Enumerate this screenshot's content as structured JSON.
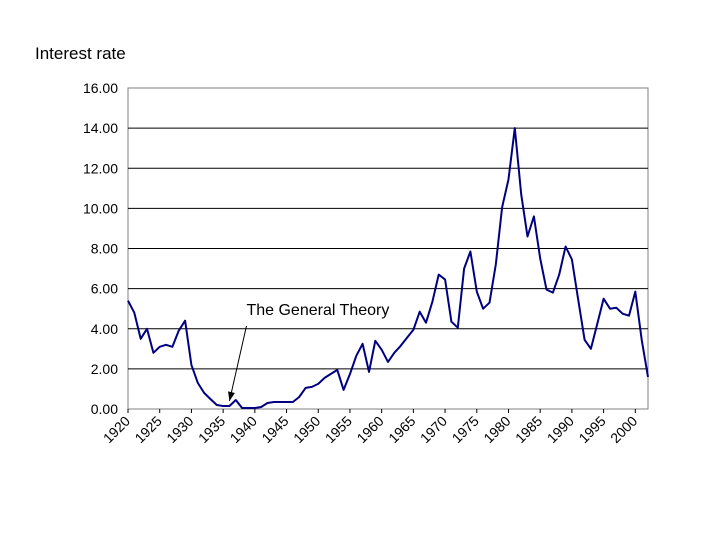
{
  "chart_data": {
    "type": "line",
    "ylabel": "Interest rate",
    "ylim": [
      0,
      16
    ],
    "y_ticks": [
      "0.00",
      "2.00",
      "4.00",
      "6.00",
      "8.00",
      "10.00",
      "12.00",
      "14.00",
      "16.00"
    ],
    "xlim": [
      1920,
      2002
    ],
    "x_ticks": [
      "1920",
      "1925",
      "1930",
      "1935",
      "1940",
      "1945",
      "1950",
      "1955",
      "1960",
      "1965",
      "1970",
      "1975",
      "1980",
      "1985",
      "1990",
      "1995",
      "2000"
    ],
    "grid": true,
    "line_color": "#000080",
    "annotation": {
      "text": "The General Theory",
      "x": 1936,
      "y": 0.4
    },
    "series": [
      {
        "x": [
          1920,
          1921,
          1922,
          1923,
          1924,
          1925,
          1926,
          1927,
          1928,
          1929,
          1930,
          1931,
          1932,
          1933,
          1934,
          1935,
          1936,
          1937,
          1938,
          1939,
          1940,
          1941,
          1942,
          1943,
          1944,
          1945,
          1946,
          1947,
          1948,
          1949,
          1950,
          1951,
          1952,
          1953,
          1954,
          1955,
          1956,
          1957,
          1958,
          1959,
          1960,
          1961,
          1962,
          1963,
          1964,
          1965,
          1966,
          1967,
          1968,
          1969,
          1970,
          1971,
          1972,
          1973,
          1974,
          1975,
          1976,
          1977,
          1978,
          1979,
          1980,
          1981,
          1982,
          1983,
          1984,
          1985,
          1986,
          1987,
          1988,
          1989,
          1990,
          1991,
          1992,
          1993,
          1994,
          1995,
          1996,
          1997,
          1998,
          1999,
          2000,
          2001,
          2002
        ],
        "values": [
          5.4,
          4.8,
          3.5,
          4.0,
          2.8,
          3.1,
          3.2,
          3.1,
          3.9,
          4.4,
          2.2,
          1.3,
          0.8,
          0.5,
          0.2,
          0.15,
          0.15,
          0.45,
          0.05,
          0.05,
          0.05,
          0.1,
          0.3,
          0.35,
          0.35,
          0.35,
          0.35,
          0.6,
          1.05,
          1.1,
          1.25,
          1.55,
          1.75,
          1.95,
          0.95,
          1.75,
          2.65,
          3.25,
          1.85,
          3.4,
          2.95,
          2.35,
          2.8,
          3.15,
          3.55,
          3.95,
          4.85,
          4.3,
          5.35,
          6.7,
          6.45,
          4.35,
          4.05,
          7.0,
          7.85,
          5.85,
          5.0,
          5.3,
          7.2,
          10.05,
          11.45,
          14.0,
          10.7,
          8.6,
          9.6,
          7.5,
          5.95,
          5.8,
          6.7,
          8.1,
          7.45,
          5.45,
          3.45,
          3.0,
          4.25,
          5.5,
          5.0,
          5.05,
          4.75,
          4.65,
          5.85,
          3.45,
          1.6
        ]
      }
    ]
  }
}
